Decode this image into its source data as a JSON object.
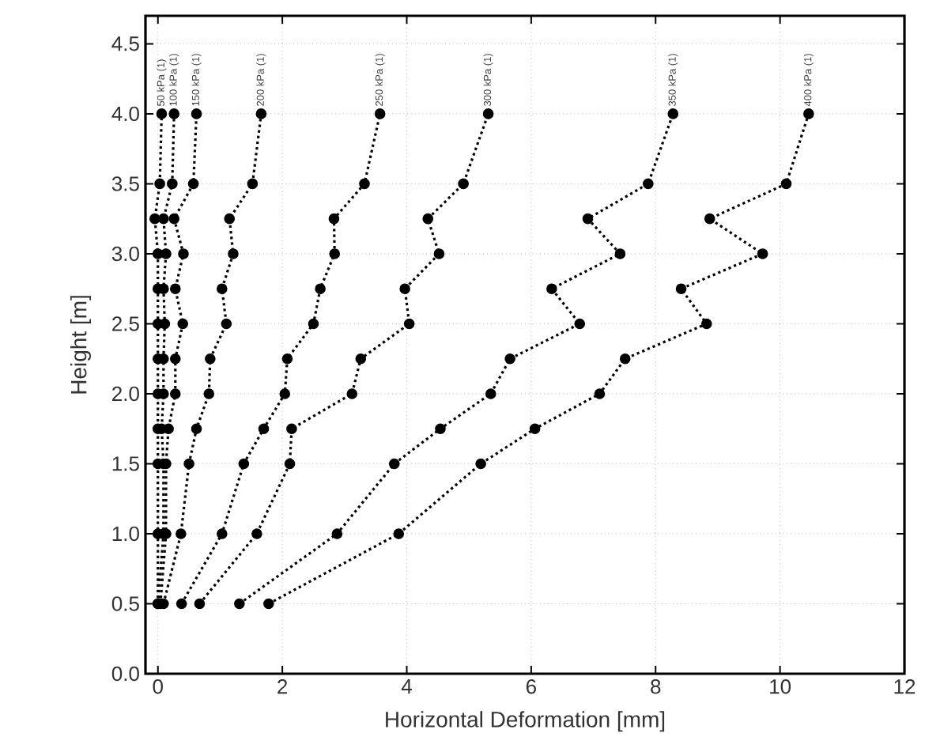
{
  "chart_data": {
    "type": "line",
    "xlabel": "Horizontal Deformation [mm]",
    "ylabel": "Height [m]",
    "x": [
      0.5,
      1.0,
      1.5,
      1.75,
      2.0,
      2.25,
      2.5,
      2.75,
      3.0,
      3.25,
      3.5,
      4.0
    ],
    "orientation": "horizontal",
    "series": [
      {
        "color": "#000000",
        "values": [
          0.0,
          0.0,
          0.0,
          0.0,
          0.0,
          0.0,
          0.0,
          0.0,
          0.0,
          -0.05,
          0.03,
          0.06
        ]
      },
      {
        "color": "#000000",
        "values": [
          0.0,
          0.09,
          0.09,
          0.06,
          0.09,
          0.09,
          0.11,
          0.09,
          0.13,
          0.09,
          0.23,
          0.26
        ]
      },
      {
        "color": "#000000",
        "values": [
          0.04,
          0.13,
          0.13,
          0.17,
          0.28,
          0.28,
          0.4,
          0.28,
          0.41,
          0.26,
          0.57,
          0.62
        ]
      },
      {
        "color": "#000000",
        "values": [
          0.09,
          0.37,
          0.5,
          0.62,
          0.82,
          0.84,
          1.1,
          1.03,
          1.21,
          1.15,
          1.52,
          1.66
        ]
      },
      {
        "color": "#000000",
        "values": [
          0.38,
          1.03,
          1.38,
          1.7,
          2.04,
          2.08,
          2.5,
          2.61,
          2.84,
          2.83,
          3.32,
          3.57
        ]
      },
      {
        "color": "#000000",
        "values": [
          0.67,
          1.59,
          2.12,
          2.15,
          3.12,
          3.26,
          4.04,
          3.97,
          4.52,
          4.34,
          4.91,
          5.31
        ]
      },
      {
        "color": "#000000",
        "values": [
          1.31,
          2.88,
          3.8,
          4.54,
          5.35,
          5.66,
          6.78,
          6.33,
          7.43,
          6.91,
          7.88,
          8.28
        ]
      },
      {
        "color": "#000000",
        "values": [
          1.78,
          3.87,
          5.19,
          6.06,
          7.1,
          7.51,
          8.82,
          8.41,
          9.72,
          8.87,
          10.1,
          10.46
        ]
      }
    ],
    "xlim": [
      -0.2,
      12
    ],
    "xticks": [
      0,
      2,
      4,
      6,
      8,
      10,
      12
    ],
    "ylim": [
      0,
      4.7
    ],
    "yticks": [
      {
        "value": 0,
        "label": "0.0"
      },
      0.5,
      {
        "value": 1,
        "label": "1.0"
      },
      1.5,
      {
        "value": 2,
        "label": "2.0"
      },
      2.5,
      {
        "value": 3,
        "label": "3.0"
      },
      3.5,
      {
        "value": 4,
        "label": "4.0"
      },
      4.5
    ],
    "grid": true,
    "marker": "circle",
    "line_style": "dotted",
    "annotations": [
      {
        "text": "50 kPa (1)",
        "x": 0.06,
        "y": 4.0
      },
      {
        "text": "100 kPa (1)",
        "x": 0.26,
        "y": 4.0
      },
      {
        "text": "150 kPa (1)",
        "x": 0.62,
        "y": 4.0
      },
      {
        "text": "200 kPa (1)",
        "x": 1.66,
        "y": 4.0
      },
      {
        "text": "250 kPa (1)",
        "x": 3.57,
        "y": 4.0
      },
      {
        "text": "300 kPa (1)",
        "x": 5.31,
        "y": 4.0
      },
      {
        "text": "350 kPa (1)",
        "x": 8.28,
        "y": 4.0
      },
      {
        "text": "400 kPa (1)",
        "x": 10.46,
        "y": 4.0
      }
    ]
  }
}
